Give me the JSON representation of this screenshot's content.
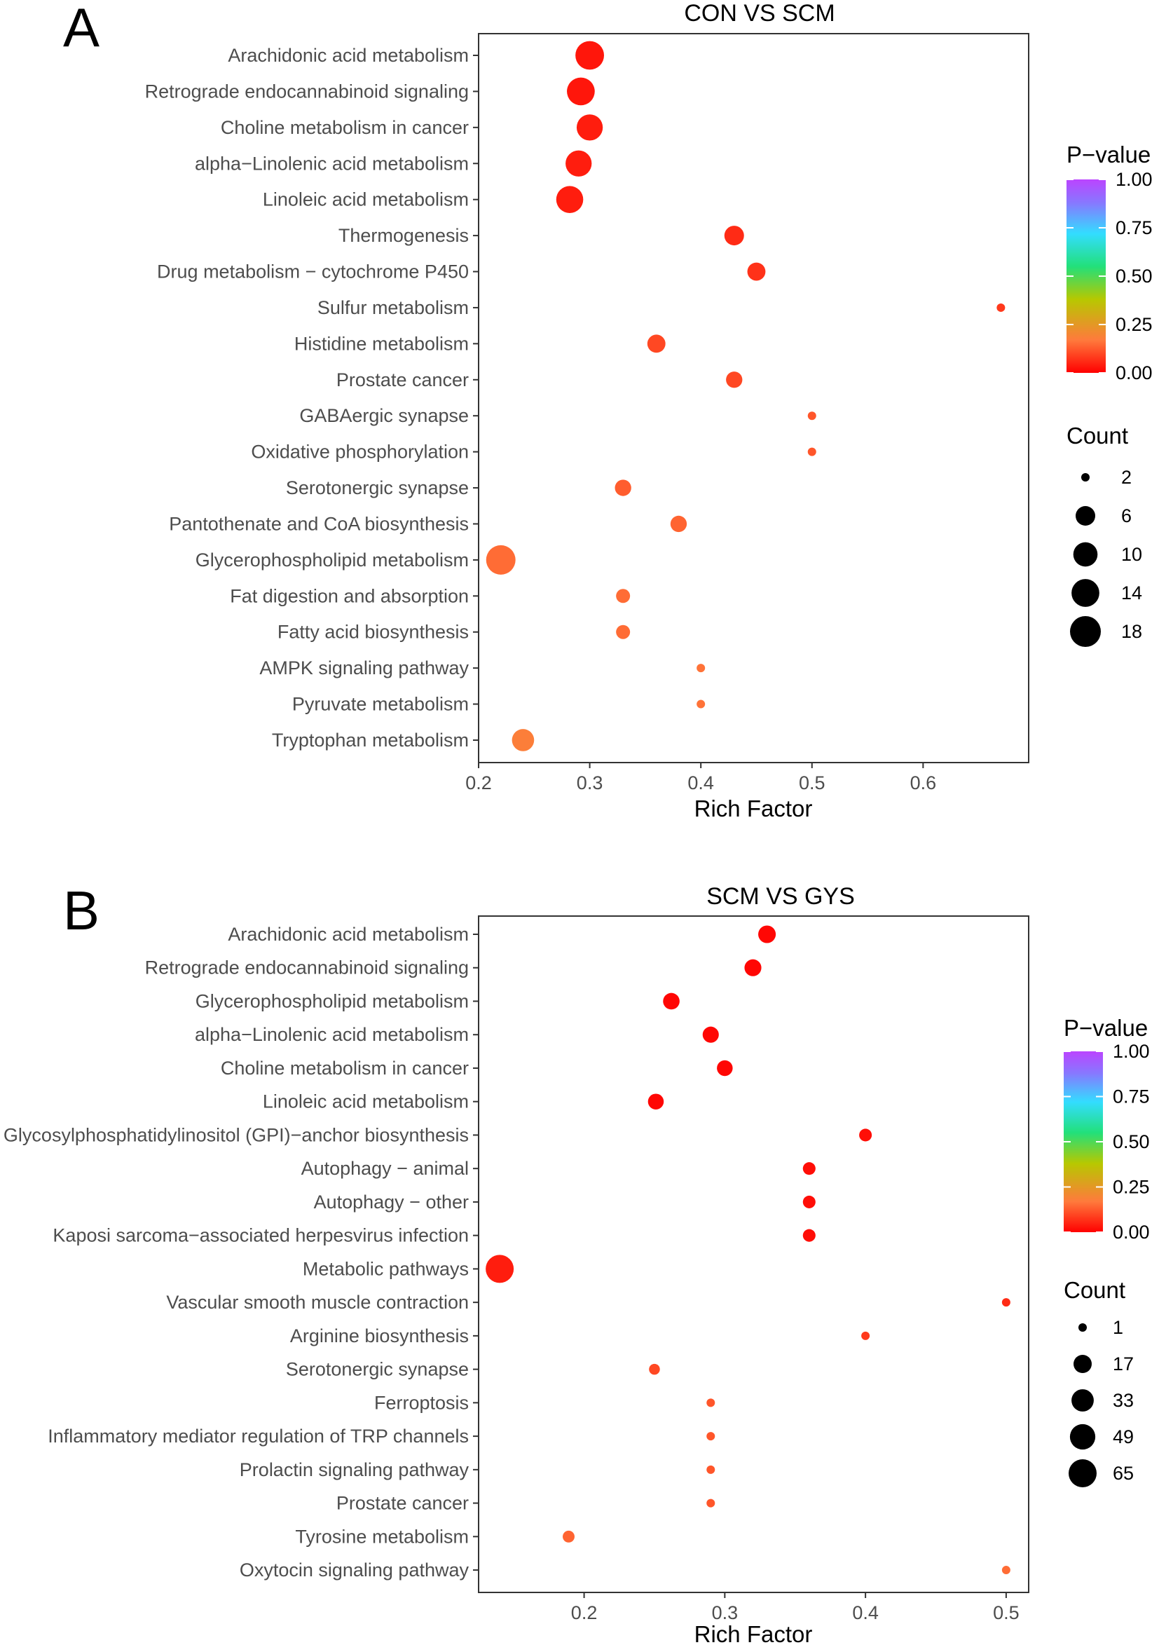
{
  "colors": {
    "scale": [
      "#ff0000",
      "#ff7a3c",
      "#99cc00",
      "#33ff99",
      "#33ddff",
      "#8877ff",
      "#bb44ff"
    ],
    "background": "#ffffff",
    "axis": "#333333"
  },
  "chart_data": [
    {
      "panel": "A",
      "type": "scatter",
      "title": "CON VS SCM",
      "xlabel": "Rich Factor",
      "xlim": [
        0.2,
        0.695
      ],
      "xticks": [
        0.2,
        0.3,
        0.4,
        0.5,
        0.6
      ],
      "xtick_labels": [
        "0.2",
        "0.3",
        "0.4",
        "0.5",
        "0.6"
      ],
      "categories": [
        "Arachidonic acid metabolism",
        "Retrograde endocannabinoid signaling",
        "Choline metabolism in cancer",
        "alpha−Linolenic acid metabolism",
        "Linoleic acid metabolism",
        "Thermogenesis",
        "Drug metabolism − cytochrome P450",
        "Sulfur metabolism",
        "Histidine metabolism",
        "Prostate cancer",
        "GABAergic synapse",
        "Oxidative phosphorylation",
        "Serotonergic synapse",
        "Pantothenate and CoA biosynthesis",
        "Glycerophospholipid metabolism",
        "Fat digestion and absorption",
        "Fatty acid biosynthesis",
        "AMPK signaling pathway",
        "Pyruvate metabolism",
        "Tryptophan metabolism"
      ],
      "points": [
        {
          "rich": 0.3,
          "count": 15,
          "p": 0.03
        },
        {
          "rich": 0.292,
          "count": 14,
          "p": 0.03
        },
        {
          "rich": 0.3,
          "count": 12,
          "p": 0.04
        },
        {
          "rich": 0.29,
          "count": 12,
          "p": 0.04
        },
        {
          "rich": 0.282,
          "count": 13,
          "p": 0.04
        },
        {
          "rich": 0.43,
          "count": 6,
          "p": 0.06
        },
        {
          "rich": 0.45,
          "count": 5,
          "p": 0.07
        },
        {
          "rich": 0.67,
          "count": 2,
          "p": 0.08
        },
        {
          "rich": 0.36,
          "count": 5,
          "p": 0.1
        },
        {
          "rich": 0.43,
          "count": 4,
          "p": 0.1
        },
        {
          "rich": 0.5,
          "count": 2,
          "p": 0.12
        },
        {
          "rich": 0.5,
          "count": 2,
          "p": 0.12
        },
        {
          "rich": 0.33,
          "count": 4,
          "p": 0.13
        },
        {
          "rich": 0.38,
          "count": 4,
          "p": 0.14
        },
        {
          "rich": 0.22,
          "count": 16,
          "p": 0.15
        },
        {
          "rich": 0.33,
          "count": 3,
          "p": 0.15
        },
        {
          "rich": 0.33,
          "count": 3,
          "p": 0.15
        },
        {
          "rich": 0.4,
          "count": 2,
          "p": 0.16
        },
        {
          "rich": 0.4,
          "count": 2,
          "p": 0.16
        },
        {
          "rich": 0.24,
          "count": 8,
          "p": 0.18
        }
      ],
      "pvalue_legend": {
        "title": "P−value",
        "ticks": [
          1.0,
          0.75,
          0.5,
          0.25,
          0.0
        ],
        "labels": [
          "1.00",
          "0.75",
          "0.50",
          "0.25",
          "0.00"
        ]
      },
      "count_legend": {
        "title": "Count",
        "values": [
          2,
          6,
          10,
          14,
          18
        ],
        "labels": [
          "2",
          "6",
          "10",
          "14",
          "18"
        ],
        "range": [
          2,
          18
        ]
      }
    },
    {
      "panel": "B",
      "type": "scatter",
      "title": "SCM VS GYS",
      "xlabel": "Rich Factor",
      "xlim": [
        0.125,
        0.516
      ],
      "xticks": [
        0.2,
        0.3,
        0.4,
        0.5
      ],
      "xtick_labels": [
        "0.2",
        "0.3",
        "0.4",
        "0.5"
      ],
      "categories": [
        "Arachidonic acid metabolism",
        "Retrograde endocannabinoid signaling",
        "Glycerophospholipid metabolism",
        "alpha−Linolenic acid metabolism",
        "Choline metabolism in cancer",
        "Linoleic acid metabolism",
        "Glycosylphosphatidylinositol (GPI)−anchor biosynthesis",
        "Autophagy − animal",
        "Autophagy − other",
        "Kaposi sarcoma−associated herpesvirus infection",
        "Metabolic pathways",
        "Vascular smooth muscle contraction",
        "Arginine biosynthesis",
        "Serotonergic synapse",
        "Ferroptosis",
        "Inflammatory mediator regulation of TRP channels",
        "Prolactin signaling pathway",
        "Prostate cancer",
        "Tyrosine metabolism",
        "Oxytocin signaling pathway"
      ],
      "points": [
        {
          "rich": 0.33,
          "count": 15,
          "p": 0.01
        },
        {
          "rich": 0.32,
          "count": 13,
          "p": 0.01
        },
        {
          "rich": 0.262,
          "count": 12,
          "p": 0.01
        },
        {
          "rich": 0.29,
          "count": 11,
          "p": 0.01
        },
        {
          "rich": 0.3,
          "count": 10,
          "p": 0.01
        },
        {
          "rich": 0.251,
          "count": 10,
          "p": 0.01
        },
        {
          "rich": 0.4,
          "count": 4,
          "p": 0.02
        },
        {
          "rich": 0.36,
          "count": 4,
          "p": 0.02
        },
        {
          "rich": 0.36,
          "count": 4,
          "p": 0.02
        },
        {
          "rich": 0.36,
          "count": 4,
          "p": 0.02
        },
        {
          "rich": 0.14,
          "count": 65,
          "p": 0.04
        },
        {
          "rich": 0.5,
          "count": 1,
          "p": 0.06
        },
        {
          "rich": 0.4,
          "count": 1,
          "p": 0.08
        },
        {
          "rich": 0.25,
          "count": 2,
          "p": 0.1
        },
        {
          "rich": 0.29,
          "count": 1,
          "p": 0.12
        },
        {
          "rich": 0.29,
          "count": 1,
          "p": 0.12
        },
        {
          "rich": 0.29,
          "count": 1,
          "p": 0.12
        },
        {
          "rich": 0.29,
          "count": 1,
          "p": 0.12
        },
        {
          "rich": 0.189,
          "count": 3,
          "p": 0.14
        },
        {
          "rich": 0.5,
          "count": 1,
          "p": 0.15
        }
      ],
      "pvalue_legend": {
        "title": "P−value",
        "ticks": [
          1.0,
          0.75,
          0.5,
          0.25,
          0.0
        ],
        "labels": [
          "1.00",
          "0.75",
          "0.50",
          "0.25",
          "0.00"
        ]
      },
      "count_legend": {
        "title": "Count",
        "values": [
          1,
          17,
          33,
          49,
          65
        ],
        "labels": [
          "1",
          "17",
          "33",
          "49",
          "65"
        ],
        "range": [
          1,
          65
        ]
      }
    }
  ]
}
